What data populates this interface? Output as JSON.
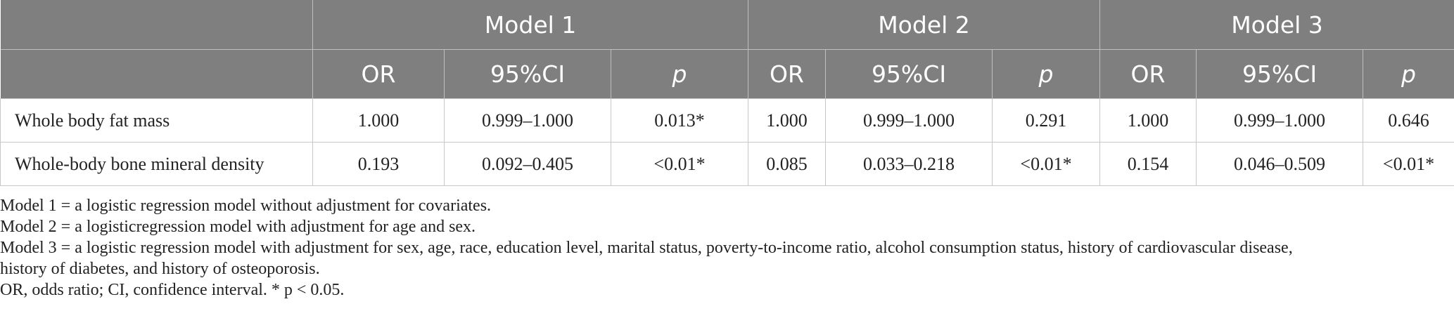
{
  "table": {
    "group_headers": [
      "",
      "Model 1",
      "Model 2",
      "Model 3"
    ],
    "sub_headers": [
      "OR",
      "95%CI",
      "p",
      "OR",
      "95%CI",
      "p",
      "OR",
      "95%CI",
      "p"
    ],
    "rows": [
      {
        "label": "Whole body fat mass",
        "cells": [
          "1.000",
          "0.999–1.000",
          "0.013*",
          "1.000",
          "0.999–1.000",
          "0.291",
          "1.000",
          "0.999–1.000",
          "0.646"
        ]
      },
      {
        "label": "Whole-body bone mineral density",
        "cells": [
          "0.193",
          "0.092–0.405",
          "<0.01*",
          "0.085",
          "0.033–0.218",
          "<0.01*",
          "0.154",
          "0.046–0.509",
          "<0.01*"
        ]
      }
    ]
  },
  "notes": [
    "Model 1 = a logistic regression model without adjustment for covariates.",
    "Model 2 = a logisticregression model with adjustment for age and sex.",
    "Model 3 = a logistic regression model with adjustment for sex, age, race, education level, marital status, poverty-to-income ratio, alcohol consumption status, history of cardiovascular disease,",
    "history of diabetes, and history of osteoporosis.",
    "OR, odds ratio; CI, confidence interval. * p < 0.05."
  ]
}
